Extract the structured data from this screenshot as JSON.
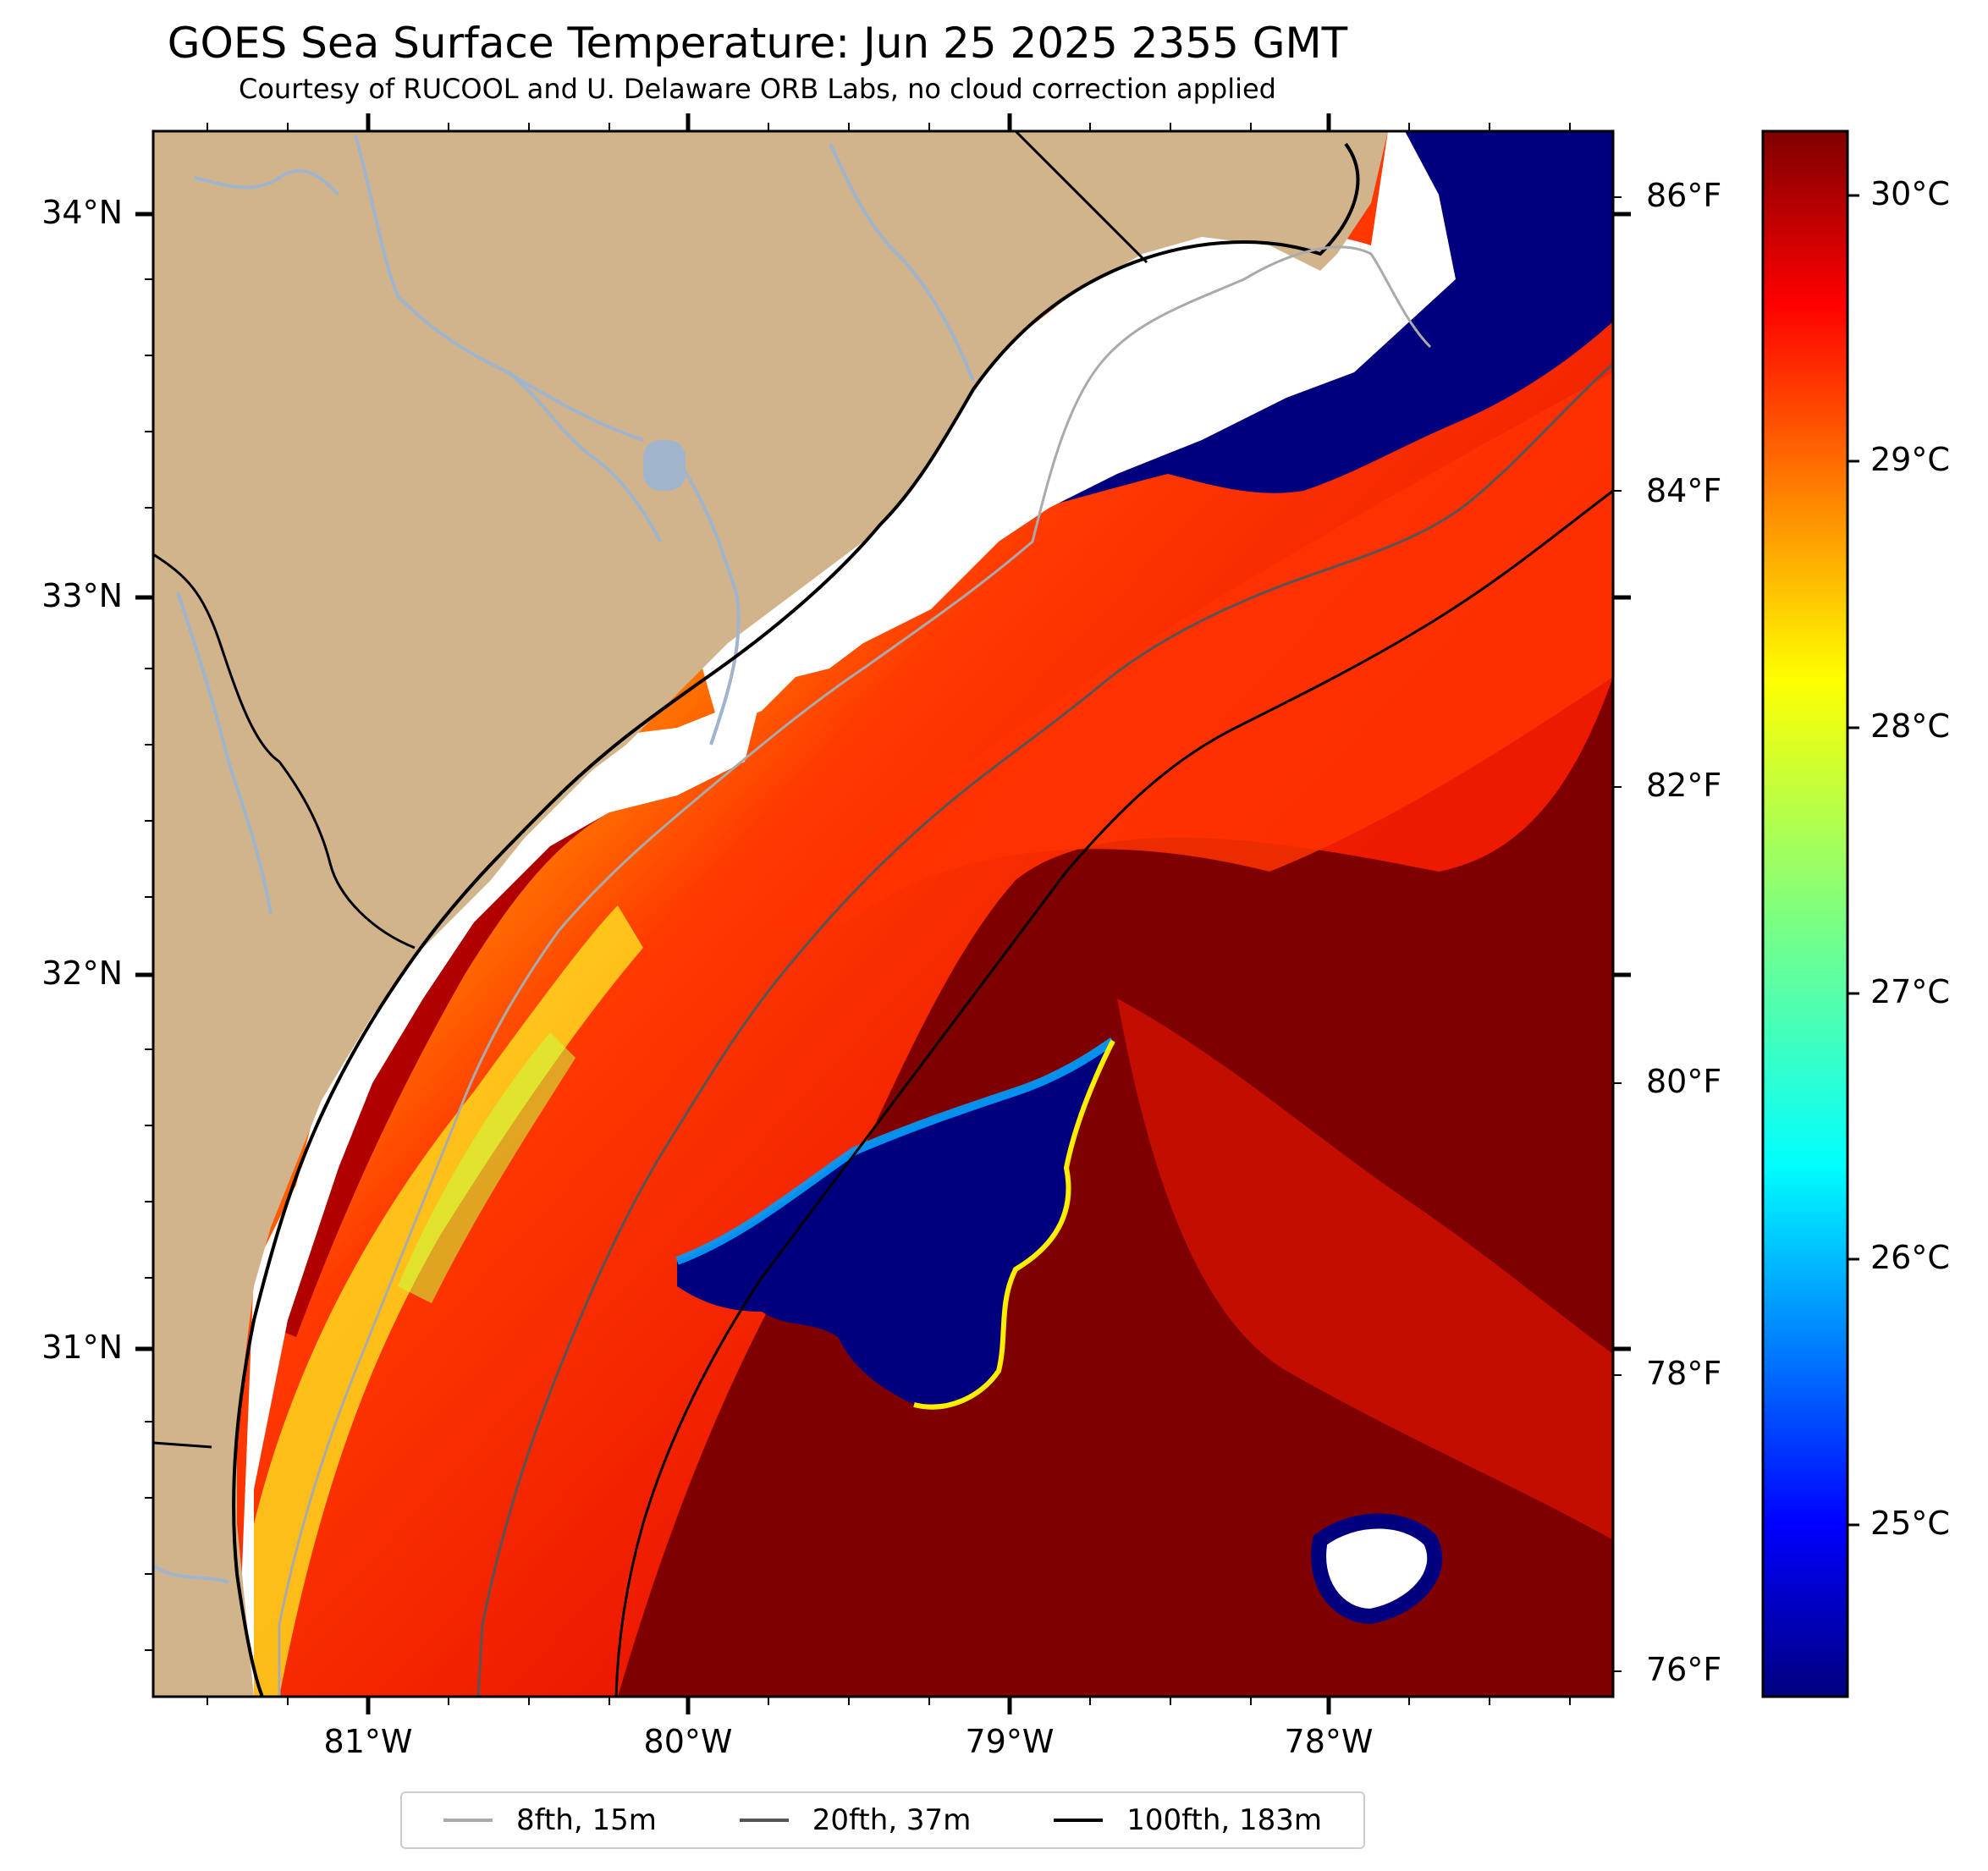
{
  "title": "GOES Sea Surface Temperature: Jun 25 2025 2355 GMT",
  "subtitle": "Courtesy of RUCOOL and U. Delaware ORB Labs, no cloud correction applied",
  "map": {
    "land_color": "#d2b48c",
    "no_data_color": "#ffffff",
    "river_color": "#a0b4cc",
    "lat_labels": [
      "34°N",
      "33°N",
      "32°N",
      "31°N"
    ],
    "lon_labels": [
      "81°W",
      "80°W",
      "79°W",
      "78°W"
    ]
  },
  "colorbar": {
    "colormap": "jet",
    "celsius_labels": [
      "30°C",
      "29°C",
      "28°C",
      "27°C",
      "26°C",
      "25°C"
    ],
    "fahrenheit_labels": [
      "86°F",
      "84°F",
      "82°F",
      "80°F",
      "78°F",
      "76°F"
    ]
  },
  "legend": {
    "items": [
      {
        "label": "8fth, 15m",
        "color": "#aaaaaa"
      },
      {
        "label": "20fth, 37m",
        "color": "#555555"
      },
      {
        "label": "100fth, 183m",
        "color": "#000000"
      }
    ]
  }
}
